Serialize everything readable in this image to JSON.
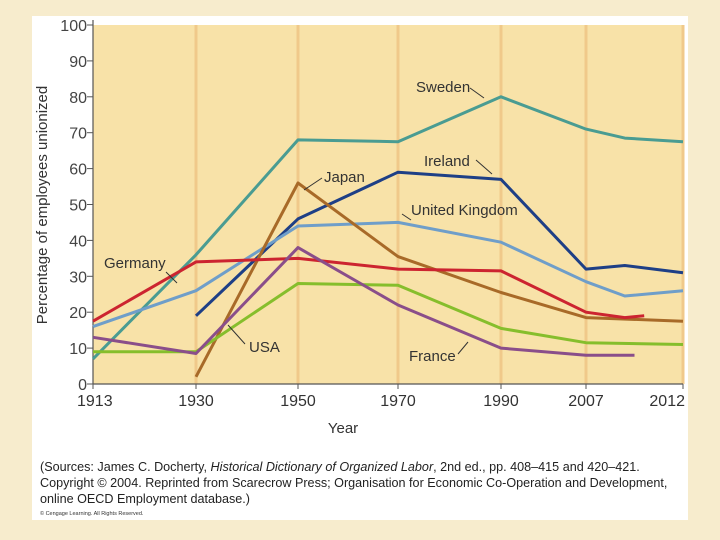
{
  "chart_data": {
    "type": "line",
    "title": "",
    "xlabel": "Year",
    "ylabel": "Percentage of employees unionized",
    "ylim": [
      0,
      100
    ],
    "yticks": [
      0,
      10,
      20,
      30,
      40,
      50,
      60,
      70,
      80,
      90,
      100
    ],
    "x_categories": [
      "1913",
      "1930",
      "1950",
      "1970",
      "1990",
      "2007",
      "2012"
    ],
    "background": "#f8e2a8",
    "grid_color": "#f0c98a",
    "series": [
      {
        "name": "Sweden",
        "color": "#4a9c92",
        "points": [
          [
            0,
            7
          ],
          [
            1,
            36
          ],
          [
            2,
            68
          ],
          [
            3,
            67.5
          ],
          [
            4,
            80
          ],
          [
            5,
            71
          ],
          [
            5.4,
            68.5
          ],
          [
            6,
            67.5
          ]
        ]
      },
      {
        "name": "Ireland",
        "color": "#1e3f86",
        "points": [
          [
            1,
            19
          ],
          [
            2,
            46
          ],
          [
            3,
            59
          ],
          [
            4,
            57
          ],
          [
            5,
            32
          ],
          [
            5.4,
            33
          ],
          [
            6,
            31
          ]
        ]
      },
      {
        "name": "United Kingdom",
        "color": "#6f9ec9",
        "points": [
          [
            0,
            16
          ],
          [
            1,
            26
          ],
          [
            2,
            44
          ],
          [
            3,
            45
          ],
          [
            4,
            39.5
          ],
          [
            5,
            28.5
          ],
          [
            5.4,
            24.5
          ],
          [
            6,
            26
          ]
        ]
      },
      {
        "name": "Japan",
        "color": "#a86a28",
        "points": [
          [
            1,
            2
          ],
          [
            2,
            56
          ],
          [
            3,
            35.5
          ],
          [
            4,
            25.5
          ],
          [
            5,
            18.5
          ],
          [
            6,
            17.5
          ]
        ]
      },
      {
        "name": "Germany",
        "color": "#cc2430",
        "points": [
          [
            0,
            17.5
          ],
          [
            1,
            34
          ],
          [
            2,
            35
          ],
          [
            3,
            32
          ],
          [
            4,
            31.5
          ],
          [
            5,
            20
          ],
          [
            5.4,
            18.5
          ],
          [
            5.6,
            19
          ]
        ]
      },
      {
        "name": "USA",
        "color": "#86be2c",
        "points": [
          [
            0,
            9
          ],
          [
            1,
            9
          ],
          [
            2,
            28
          ],
          [
            3,
            27.5
          ],
          [
            4,
            15.5
          ],
          [
            5,
            11.5
          ],
          [
            6,
            11
          ]
        ]
      },
      {
        "name": "France",
        "color": "#8a4e8a",
        "points": [
          [
            0,
            13
          ],
          [
            1,
            8.5
          ],
          [
            2,
            38
          ],
          [
            3,
            22
          ],
          [
            4,
            10
          ],
          [
            5,
            8
          ],
          [
            5.5,
            8
          ]
        ]
      }
    ],
    "annotations": [
      {
        "label": "Sweden",
        "series": "Sweden"
      },
      {
        "label": "Ireland",
        "series": "Ireland"
      },
      {
        "label": "United Kingdom",
        "series": "United Kingdom"
      },
      {
        "label": "Japan",
        "series": "Japan"
      },
      {
        "label": "Germany",
        "series": "Germany"
      },
      {
        "label": "USA",
        "series": "USA"
      },
      {
        "label": "France",
        "series": "France"
      }
    ]
  },
  "sources": {
    "prefix": "(Sources: James C. Docherty, ",
    "book_title": "Historical Dictionary of Organized Labor",
    "rest_line1": ", 2nd ed., pp. 408–415 and 420–421.",
    "line2": "Copyright © 2004. Reprinted from Scarecrow Press;  Organisation for Economic Co-Operation and  Development,",
    "line3": "online OECD Employment database.)"
  },
  "copyright_small": "© Cengage Learning. All Rights Reserved."
}
